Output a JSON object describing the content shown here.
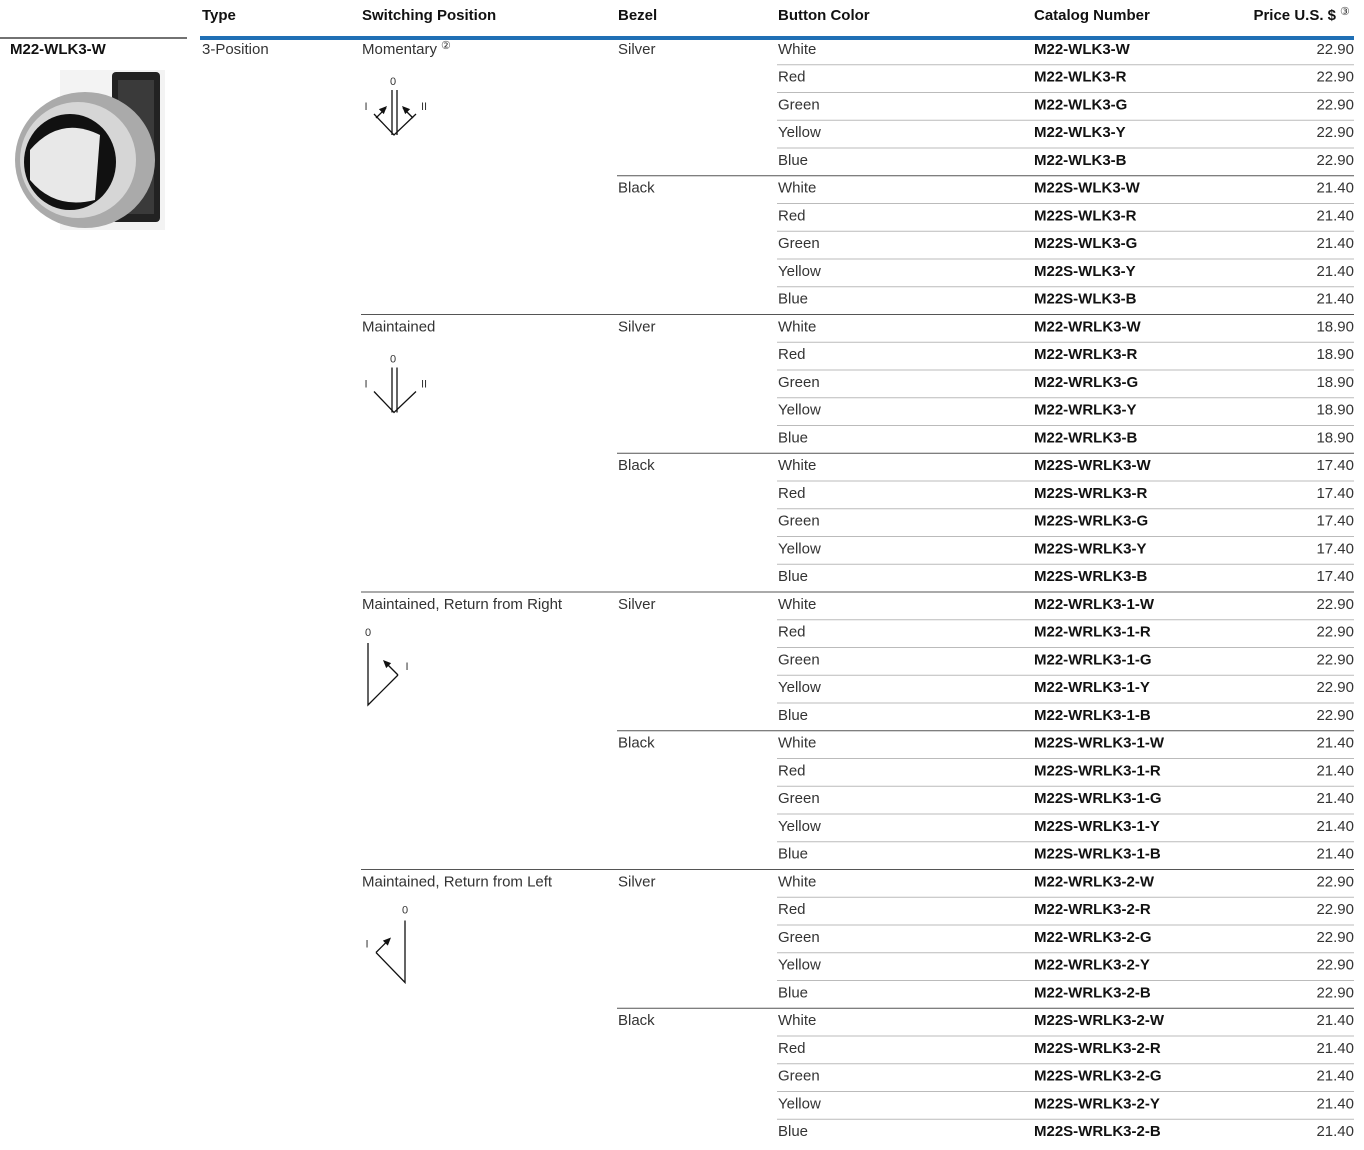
{
  "header": {
    "columns": [
      "Type",
      "Switching Position",
      "Bezel",
      "Button Color",
      "Catalog Number",
      "Price U.S. $"
    ],
    "price_note": "③"
  },
  "product": {
    "label": "M22-WLK3-W"
  },
  "table": {
    "type": "3-Position",
    "groups": [
      {
        "position": "Momentary",
        "note": "②",
        "diagram": {
          "top": "0",
          "left": "I",
          "right": "II"
        },
        "bezels": [
          {
            "bezel": "Silver",
            "rows": [
              [
                "White",
                "M22-WLK3-W",
                "22.90"
              ],
              [
                "Red",
                "M22-WLK3-R",
                "22.90"
              ],
              [
                "Green",
                "M22-WLK3-G",
                "22.90"
              ],
              [
                "Yellow",
                "M22-WLK3-Y",
                "22.90"
              ],
              [
                "Blue",
                "M22-WLK3-B",
                "22.90"
              ]
            ]
          },
          {
            "bezel": "Black",
            "rows": [
              [
                "White",
                "M22S-WLK3-W",
                "21.40"
              ],
              [
                "Red",
                "M22S-WLK3-R",
                "21.40"
              ],
              [
                "Green",
                "M22S-WLK3-G",
                "21.40"
              ],
              [
                "Yellow",
                "M22S-WLK3-Y",
                "21.40"
              ],
              [
                "Blue",
                "M22S-WLK3-B",
                "21.40"
              ]
            ]
          }
        ]
      },
      {
        "position": "Maintained",
        "diagram": {
          "top": "0",
          "left": "I",
          "right": "II"
        },
        "bezels": [
          {
            "bezel": "Silver",
            "rows": [
              [
                "White",
                "M22-WRLK3-W",
                "18.90"
              ],
              [
                "Red",
                "M22-WRLK3-R",
                "18.90"
              ],
              [
                "Green",
                "M22-WRLK3-G",
                "18.90"
              ],
              [
                "Yellow",
                "M22-WRLK3-Y",
                "18.90"
              ],
              [
                "Blue",
                "M22-WRLK3-B",
                "18.90"
              ]
            ]
          },
          {
            "bezel": "Black",
            "rows": [
              [
                "White",
                "M22S-WRLK3-W",
                "17.40"
              ],
              [
                "Red",
                "M22S-WRLK3-R",
                "17.40"
              ],
              [
                "Green",
                "M22S-WRLK3-G",
                "17.40"
              ],
              [
                "Yellow",
                "M22S-WRLK3-Y",
                "17.40"
              ],
              [
                "Blue",
                "M22S-WRLK3-B",
                "17.40"
              ]
            ]
          }
        ]
      },
      {
        "position": "Maintained, Return from Right",
        "diagram": {
          "top": "0",
          "right": "I"
        },
        "bezels": [
          {
            "bezel": "Silver",
            "rows": [
              [
                "White",
                "M22-WRLK3-1-W",
                "22.90"
              ],
              [
                "Red",
                "M22-WRLK3-1-R",
                "22.90"
              ],
              [
                "Green",
                "M22-WRLK3-1-G",
                "22.90"
              ],
              [
                "Yellow",
                "M22-WRLK3-1-Y",
                "22.90"
              ],
              [
                "Blue",
                "M22-WRLK3-1-B",
                "22.90"
              ]
            ]
          },
          {
            "bezel": "Black",
            "rows": [
              [
                "White",
                "M22S-WRLK3-1-W",
                "21.40"
              ],
              [
                "Red",
                "M22S-WRLK3-1-R",
                "21.40"
              ],
              [
                "Green",
                "M22S-WRLK3-1-G",
                "21.40"
              ],
              [
                "Yellow",
                "M22S-WRLK3-1-Y",
                "21.40"
              ],
              [
                "Blue",
                "M22S-WRLK3-1-B",
                "21.40"
              ]
            ]
          }
        ]
      },
      {
        "position": "Maintained, Return from Left",
        "diagram": {
          "top": "0",
          "left": "I"
        },
        "bezels": [
          {
            "bezel": "Silver",
            "rows": [
              [
                "White",
                "M22-WRLK3-2-W",
                "22.90"
              ],
              [
                "Red",
                "M22-WRLK3-2-R",
                "22.90"
              ],
              [
                "Green",
                "M22-WRLK3-2-G",
                "22.90"
              ],
              [
                "Yellow",
                "M22-WRLK3-2-Y",
                "22.90"
              ],
              [
                "Blue",
                "M22-WRLK3-2-B",
                "22.90"
              ]
            ]
          },
          {
            "bezel": "Black",
            "rows": [
              [
                "White",
                "M22S-WRLK3-2-W",
                "21.40"
              ],
              [
                "Red",
                "M22S-WRLK3-2-R",
                "21.40"
              ],
              [
                "Green",
                "M22S-WRLK3-2-G",
                "21.40"
              ],
              [
                "Yellow",
                "M22S-WRLK3-2-Y",
                "21.40"
              ],
              [
                "Blue",
                "M22S-WRLK3-2-B",
                "21.40"
              ]
            ]
          }
        ]
      }
    ]
  }
}
